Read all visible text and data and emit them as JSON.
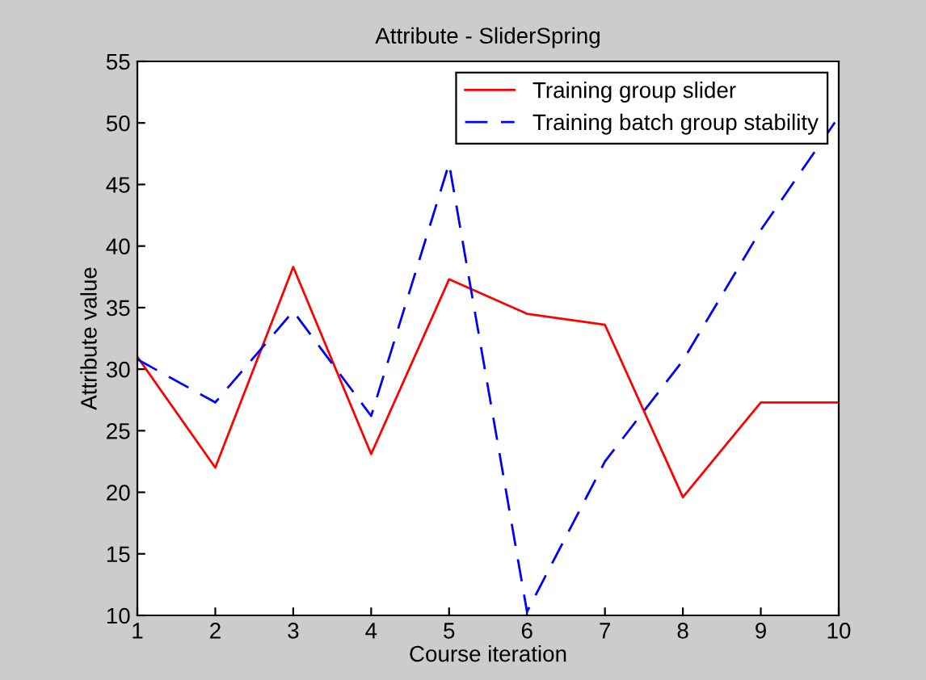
{
  "chart_data": {
    "type": "line",
    "title": "Attribute - SliderSpring",
    "xlabel": "Course iteration",
    "ylabel": "Attribute value",
    "x": [
      1,
      2,
      3,
      4,
      5,
      6,
      7,
      8,
      9,
      10
    ],
    "series": [
      {
        "name": "Training group slider",
        "color": "#ff0000",
        "line_style": "solid",
        "values": [
          31,
          22,
          38.3,
          23.1,
          37.3,
          34.5,
          33.6,
          19.6,
          27.3,
          27.3
        ]
      },
      {
        "name": "Training batch group stability",
        "color": "#0000ff",
        "line_style": "dashed",
        "values": [
          30.8,
          27.3,
          34.7,
          26.2,
          46.7,
          10.3,
          22.5,
          30.7,
          41.3,
          50.5
        ]
      }
    ],
    "xlim": [
      1,
      10
    ],
    "xticks": [
      1,
      2,
      3,
      4,
      5,
      6,
      7,
      8,
      9,
      10
    ],
    "ylim": [
      10,
      55
    ],
    "yticks": [
      10,
      15,
      20,
      25,
      30,
      35,
      40,
      45,
      50,
      55
    ],
    "grid": false,
    "legend": "top right"
  }
}
